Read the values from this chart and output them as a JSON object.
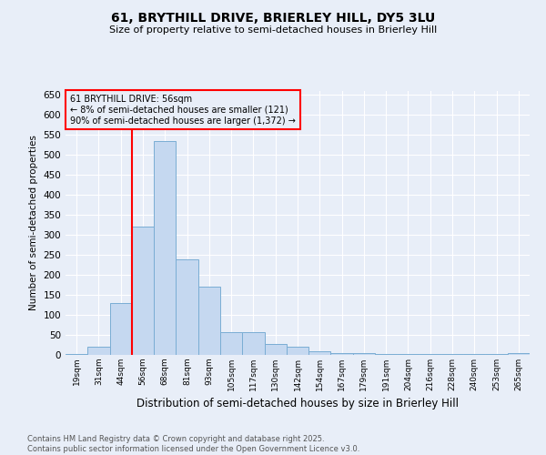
{
  "title1": "61, BRYTHILL DRIVE, BRIERLEY HILL, DY5 3LU",
  "title2": "Size of property relative to semi-detached houses in Brierley Hill",
  "xlabel": "Distribution of semi-detached houses by size in Brierley Hill",
  "ylabel": "Number of semi-detached properties",
  "categories": [
    "19sqm",
    "31sqm",
    "44sqm",
    "56sqm",
    "68sqm",
    "81sqm",
    "93sqm",
    "105sqm",
    "117sqm",
    "130sqm",
    "142sqm",
    "154sqm",
    "167sqm",
    "179sqm",
    "191sqm",
    "204sqm",
    "216sqm",
    "228sqm",
    "240sqm",
    "253sqm",
    "265sqm"
  ],
  "values": [
    2,
    20,
    130,
    320,
    535,
    240,
    170,
    57,
    57,
    27,
    20,
    10,
    5,
    5,
    2,
    2,
    2,
    2,
    2,
    2,
    5
  ],
  "bar_color": "#c5d8f0",
  "bar_edgecolor": "#7aadd4",
  "red_line_index": 3,
  "annotation_text": "61 BRYTHILL DRIVE: 56sqm\n← 8% of semi-detached houses are smaller (121)\n90% of semi-detached houses are larger (1,372) →",
  "footer": "Contains HM Land Registry data © Crown copyright and database right 2025.\nContains public sector information licensed under the Open Government Licence v3.0.",
  "ylim": [
    0,
    660
  ],
  "yticks": [
    0,
    50,
    100,
    150,
    200,
    250,
    300,
    350,
    400,
    450,
    500,
    550,
    600,
    650
  ],
  "bg_color": "#e8eef8",
  "grid_color": "#ffffff"
}
